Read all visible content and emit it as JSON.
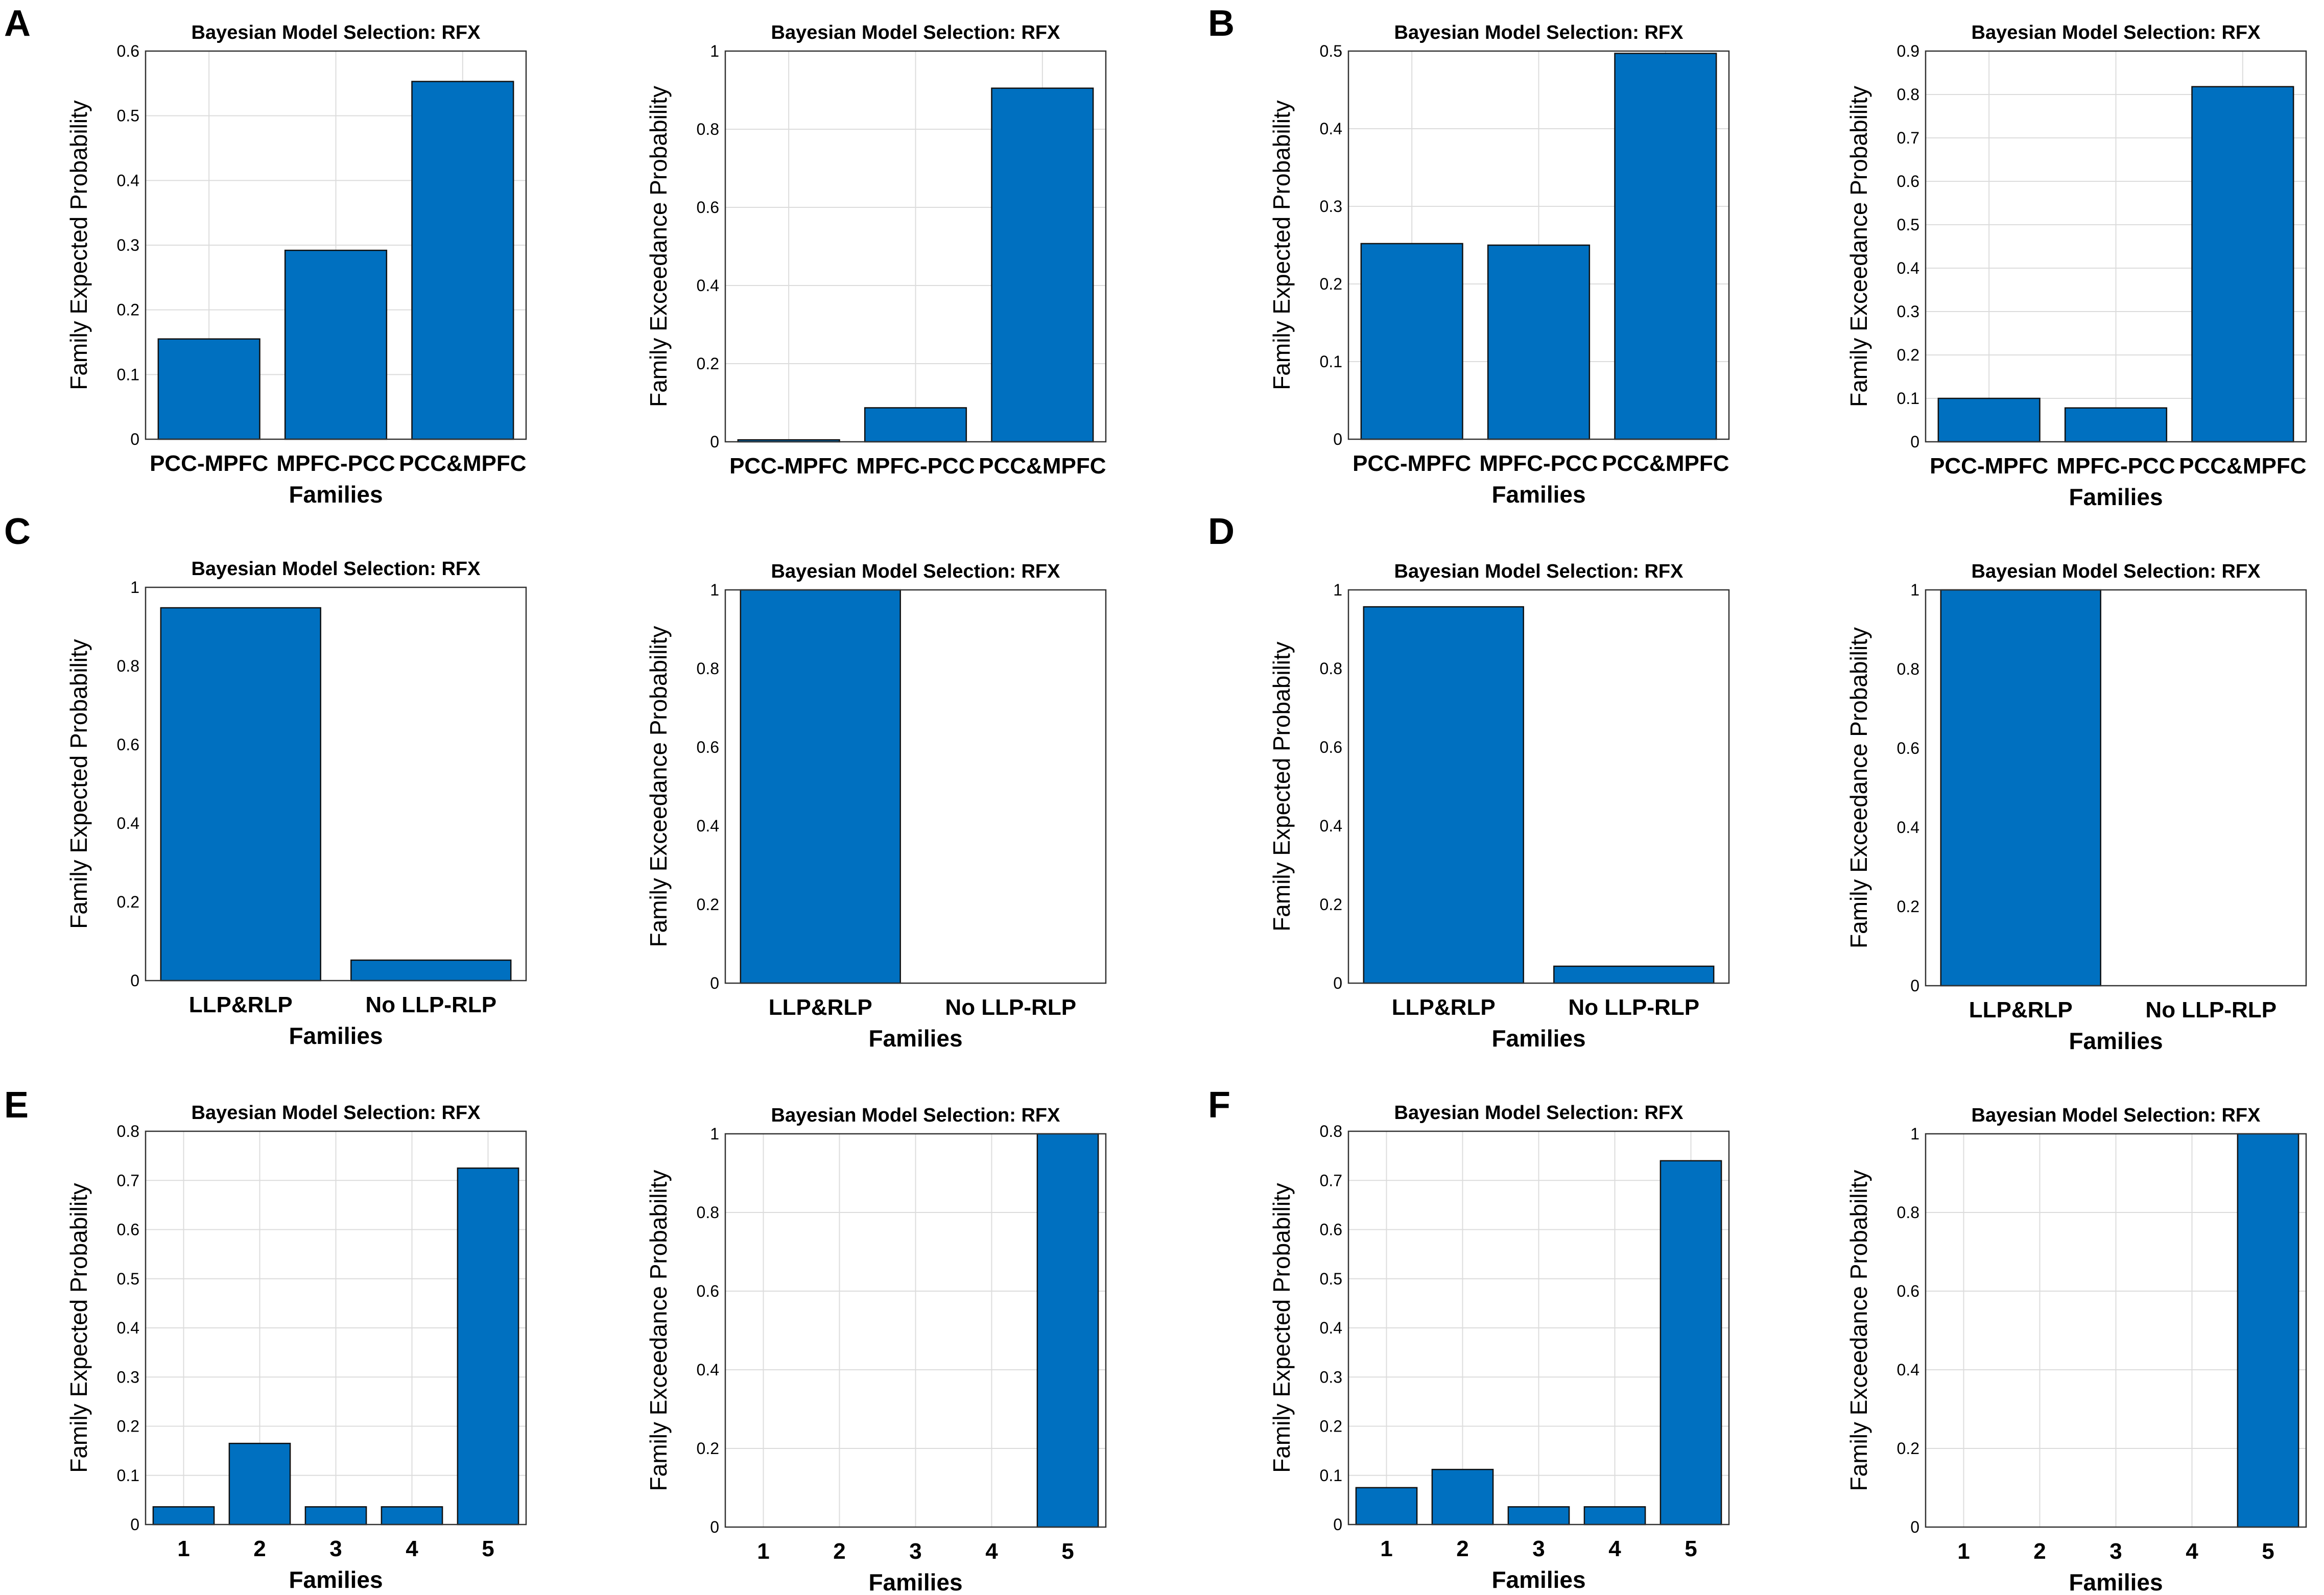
{
  "panel_letters": [
    "A",
    "B",
    "C",
    "D",
    "E",
    "F"
  ],
  "chart_data": [
    {
      "panel": "A",
      "type": "bar",
      "title": "Bayesian Model Selection: RFX",
      "ylabel": "Family Expected Probability",
      "xlabel": "Families",
      "categories": [
        "PCC-MPFC",
        "MPFC-PCC",
        "PCC&MPFC"
      ],
      "values": [
        0.155,
        0.292,
        0.553
      ],
      "ylim": [
        0,
        0.6
      ],
      "yticks": [
        "0",
        "0.1",
        "0.2",
        "0.3",
        "0.4",
        "0.5",
        "0.6"
      ],
      "grid": true
    },
    {
      "panel": "A",
      "type": "bar",
      "title": "Bayesian Model Selection: RFX",
      "ylabel": "Family Exceedance Probability",
      "xlabel": "",
      "categories": [
        "PCC-MPFC",
        "MPFC-PCC",
        "PCC&MPFC"
      ],
      "values": [
        0.005,
        0.087,
        0.905
      ],
      "ylim": [
        0,
        1
      ],
      "yticks": [
        "0",
        "0.2",
        "0.4",
        "0.6",
        "0.8",
        "1"
      ],
      "grid": true
    },
    {
      "panel": "B",
      "type": "bar",
      "title": "Bayesian Model Selection: RFX",
      "ylabel": "Family Expected Probability",
      "xlabel": "Families",
      "categories": [
        "PCC-MPFC",
        "MPFC-PCC",
        "PCC&MPFC"
      ],
      "values": [
        0.252,
        0.25,
        0.497
      ],
      "ylim": [
        0,
        0.5
      ],
      "yticks": [
        "0",
        "0.1",
        "0.2",
        "0.3",
        "0.4",
        "0.5"
      ],
      "grid": true
    },
    {
      "panel": "B",
      "type": "bar",
      "title": "Bayesian Model Selection: RFX",
      "ylabel": "Family Exceedance Probability",
      "xlabel": "Families",
      "categories": [
        "PCC-MPFC",
        "MPFC-PCC",
        "PCC&MPFC"
      ],
      "values": [
        0.1,
        0.078,
        0.818
      ],
      "ylim": [
        0,
        0.9
      ],
      "yticks": [
        "0",
        "0.1",
        "0.2",
        "0.3",
        "0.4",
        "0.5",
        "0.6",
        "0.7",
        "0.8",
        "0.9"
      ],
      "grid": true
    },
    {
      "panel": "C",
      "type": "bar",
      "title": "Bayesian Model Selection: RFX",
      "ylabel": "Family Expected Probability",
      "xlabel": "Families",
      "categories": [
        "LLP&RLP",
        "No LLP-RLP"
      ],
      "values": [
        0.948,
        0.052
      ],
      "ylim": [
        0,
        1
      ],
      "yticks": [
        "0",
        "0.2",
        "0.4",
        "0.6",
        "0.8",
        "1"
      ],
      "grid": false
    },
    {
      "panel": "C",
      "type": "bar",
      "title": "Bayesian Model Selection: RFX",
      "ylabel": "Family Exceedance Probability",
      "xlabel": "Families",
      "categories": [
        "LLP&RLP",
        "No LLP-RLP"
      ],
      "values": [
        1.0,
        0.0
      ],
      "ylim": [
        0,
        1
      ],
      "yticks": [
        "0",
        "0.2",
        "0.4",
        "0.6",
        "0.8",
        "1"
      ],
      "grid": false
    },
    {
      "panel": "D",
      "type": "bar",
      "title": "Bayesian Model Selection: RFX",
      "ylabel": "Family Expected Probability",
      "xlabel": "Families",
      "categories": [
        "LLP&RLP",
        "No LLP-RLP"
      ],
      "values": [
        0.957,
        0.043
      ],
      "ylim": [
        0,
        1
      ],
      "yticks": [
        "0",
        "0.2",
        "0.4",
        "0.6",
        "0.8",
        "1"
      ],
      "grid": false
    },
    {
      "panel": "D",
      "type": "bar",
      "title": "Bayesian Model Selection: RFX",
      "ylabel": "Family Exceedance Probability",
      "xlabel": "Families",
      "categories": [
        "LLP&RLP",
        "No LLP-RLP"
      ],
      "values": [
        1.0,
        0.0
      ],
      "ylim": [
        0,
        1
      ],
      "yticks": [
        "0",
        "0.2",
        "0.4",
        "0.6",
        "0.8",
        "1"
      ],
      "grid": false
    },
    {
      "panel": "E",
      "type": "bar",
      "title": "Bayesian Model Selection: RFX",
      "ylabel": "Family Expected Probability",
      "xlabel": "Families",
      "categories": [
        "1",
        "2",
        "3",
        "4",
        "5"
      ],
      "values": [
        0.036,
        0.165,
        0.036,
        0.036,
        0.725
      ],
      "ylim": [
        0,
        0.8
      ],
      "yticks": [
        "0",
        "0.1",
        "0.2",
        "0.3",
        "0.4",
        "0.5",
        "0.6",
        "0.7",
        "0.8"
      ],
      "grid": true
    },
    {
      "panel": "E",
      "type": "bar",
      "title": "Bayesian Model Selection: RFX",
      "ylabel": "Family Exceedance Probability",
      "xlabel": "Families",
      "categories": [
        "1",
        "2",
        "3",
        "4",
        "5"
      ],
      "values": [
        0,
        0,
        0,
        0,
        1.0
      ],
      "ylim": [
        0,
        1
      ],
      "yticks": [
        "0",
        "0.2",
        "0.4",
        "0.6",
        "0.8",
        "1"
      ],
      "grid": true
    },
    {
      "panel": "F",
      "type": "bar",
      "title": "Bayesian Model Selection: RFX",
      "ylabel": "Family Expected Probability",
      "xlabel": "Families",
      "categories": [
        "1",
        "2",
        "3",
        "4",
        "5"
      ],
      "values": [
        0.075,
        0.112,
        0.036,
        0.036,
        0.74
      ],
      "ylim": [
        0,
        0.8
      ],
      "yticks": [
        "0",
        "0.1",
        "0.2",
        "0.3",
        "0.4",
        "0.5",
        "0.6",
        "0.7",
        "0.8"
      ],
      "grid": true
    },
    {
      "panel": "F",
      "type": "bar",
      "title": "Bayesian Model Selection: RFX",
      "ylabel": "Family Exceedance Probability",
      "xlabel": "Families",
      "categories": [
        "1",
        "2",
        "3",
        "4",
        "5"
      ],
      "values": [
        0,
        0,
        0,
        0,
        1.0
      ],
      "ylim": [
        0,
        1
      ],
      "yticks": [
        "0",
        "0.2",
        "0.4",
        "0.6",
        "0.8",
        "1"
      ],
      "grid": true
    }
  ]
}
